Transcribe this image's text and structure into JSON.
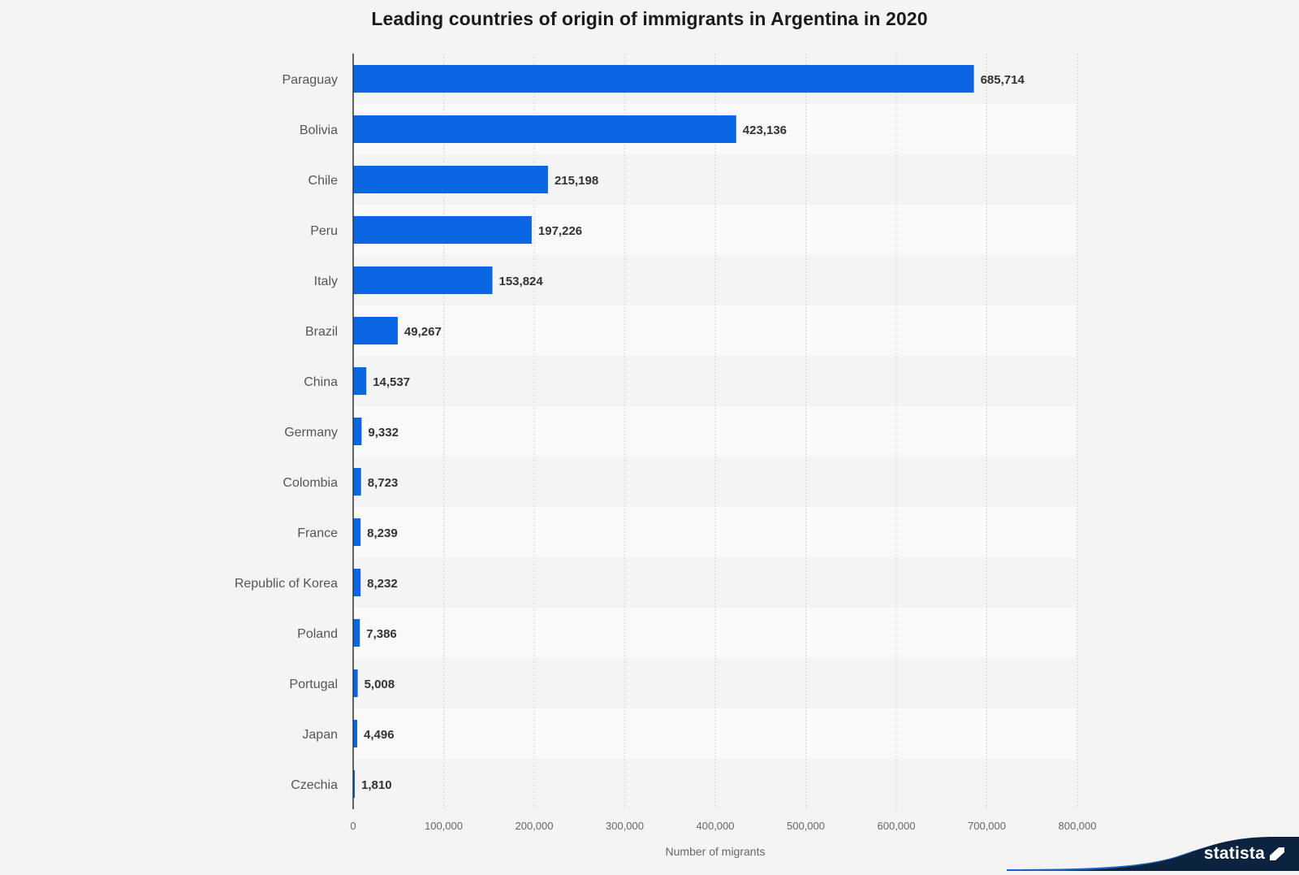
{
  "chart_data": {
    "type": "bar",
    "orientation": "horizontal",
    "title": "Leading countries of origin of immigrants in Argentina in 2020",
    "xlabel": "Number of migrants",
    "ylabel": "",
    "xlim": [
      0,
      800000
    ],
    "grid": true,
    "categories": [
      "Paraguay",
      "Bolivia",
      "Chile",
      "Peru",
      "Italy",
      "Brazil",
      "China",
      "Germany",
      "Colombia",
      "France",
      "Republic of Korea",
      "Poland",
      "Portugal",
      "Japan",
      "Czechia"
    ],
    "values": [
      685714,
      423136,
      215198,
      197226,
      153824,
      49267,
      14537,
      9332,
      8723,
      8239,
      8232,
      7386,
      5008,
      4496,
      1810
    ],
    "value_labels": [
      "685,714",
      "423,136",
      "215,198",
      "197,226",
      "153,824",
      "49,267",
      "14,537",
      "9,332",
      "8,723",
      "8,239",
      "8,232",
      "7,386",
      "5,008",
      "4,496",
      "1,810"
    ],
    "ticks": [
      0,
      100000,
      200000,
      300000,
      400000,
      500000,
      600000,
      700000,
      800000
    ],
    "tick_labels": [
      "0",
      "100,000",
      "200,000",
      "300,000",
      "400,000",
      "500,000",
      "600,000",
      "700,000",
      "800,000"
    ],
    "bar_color": "#0b66e4"
  },
  "brand": {
    "name": "statista",
    "color": "#0c2340",
    "accent": "#1565c0"
  }
}
